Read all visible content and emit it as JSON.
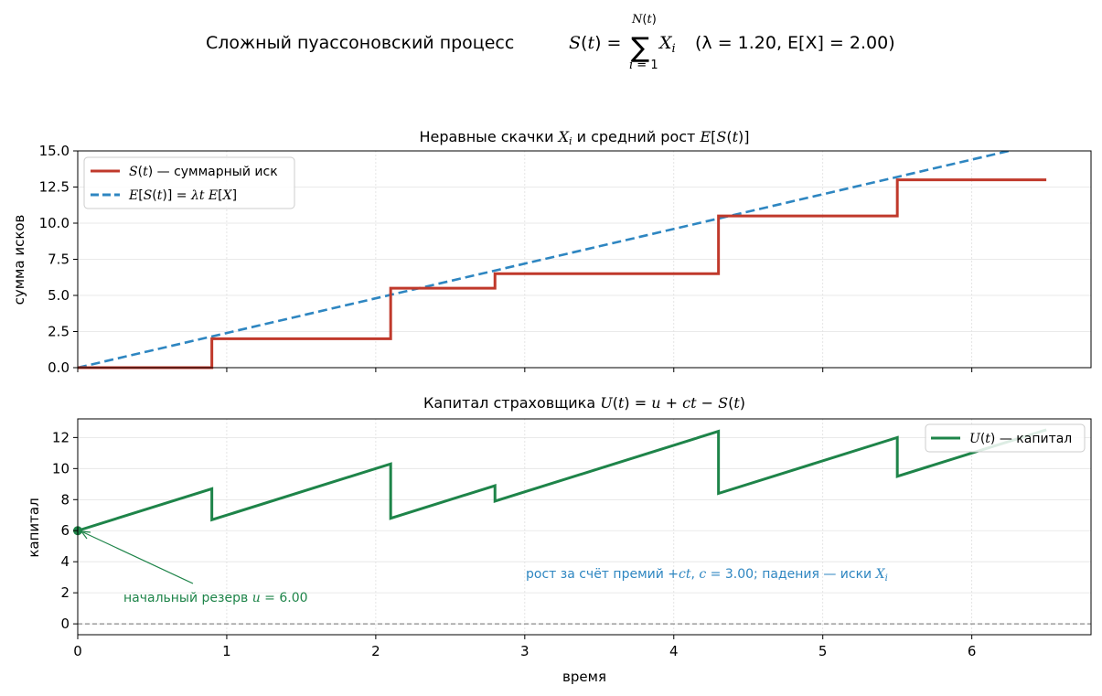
{
  "figure": {
    "suptitle_text": "Сложный пуассоновский процесс",
    "suptitle_params": "(λ = 1.20, E[X] = 2.00)",
    "suptitle_formula": "S(t) = Σ X_i, i = 1 … N(t)"
  },
  "chart_data": [
    {
      "type": "line",
      "title": "Неравные скачки X_i и средний рост E[S(t)]",
      "ylabel": "сумма исков",
      "xlabel": "",
      "xlim": [
        0,
        6.8
      ],
      "ylim": [
        0,
        15
      ],
      "yticks": [
        "0.0",
        "2.5",
        "5.0",
        "7.5",
        "10.0",
        "12.5",
        "15.0"
      ],
      "grid": true,
      "legend": "top-left",
      "series": [
        {
          "name": "S(t) — суммарный иск",
          "color": "#c0392b",
          "style": "step",
          "x": [
            0,
            0.9,
            0.9,
            2.1,
            2.1,
            2.8,
            2.8,
            4.3,
            4.3,
            5.5,
            5.5,
            6.5
          ],
          "y": [
            0,
            0,
            2.0,
            2.0,
            5.5,
            5.5,
            6.5,
            6.5,
            10.5,
            10.5,
            13.0,
            13.0
          ]
        },
        {
          "name": "E[S(t)] = λt E[X]",
          "color": "#2e86c1",
          "style": "dashed",
          "x": [
            0,
            6.8
          ],
          "y": [
            0,
            16.32
          ]
        }
      ]
    },
    {
      "type": "line",
      "title": "Капитал страховщика U(t) = u + ct − S(t)",
      "ylabel": "капитал",
      "xlabel": "время",
      "xlim": [
        0,
        6.8
      ],
      "ylim": [
        -0.7,
        13.2
      ],
      "xticks": [
        "0",
        "1",
        "2",
        "3",
        "4",
        "5",
        "6"
      ],
      "yticks": [
        "0",
        "2",
        "4",
        "6",
        "8",
        "10",
        "12"
      ],
      "grid": true,
      "legend": "top-right",
      "series": [
        {
          "name": "U(t) — капитал",
          "color": "#1e8449",
          "x": [
            0,
            0.9,
            0.9,
            2.1,
            2.1,
            2.8,
            2.8,
            4.3,
            4.3,
            5.5,
            5.5,
            6.5
          ],
          "y": [
            6.0,
            8.7,
            6.7,
            10.3,
            6.8,
            8.9,
            7.9,
            12.4,
            8.4,
            12.0,
            9.5,
            12.5
          ]
        }
      ],
      "annotations": [
        {
          "text": "начальный резерв u = 6.00",
          "x": 0,
          "y": 6.0,
          "color": "#1e8449"
        },
        {
          "text": "рост за счёт премий +ct, c = 3.00;  падения — иски X_i",
          "x": 3.0,
          "y": 3.3,
          "color": "#2e86c1"
        }
      ]
    }
  ]
}
